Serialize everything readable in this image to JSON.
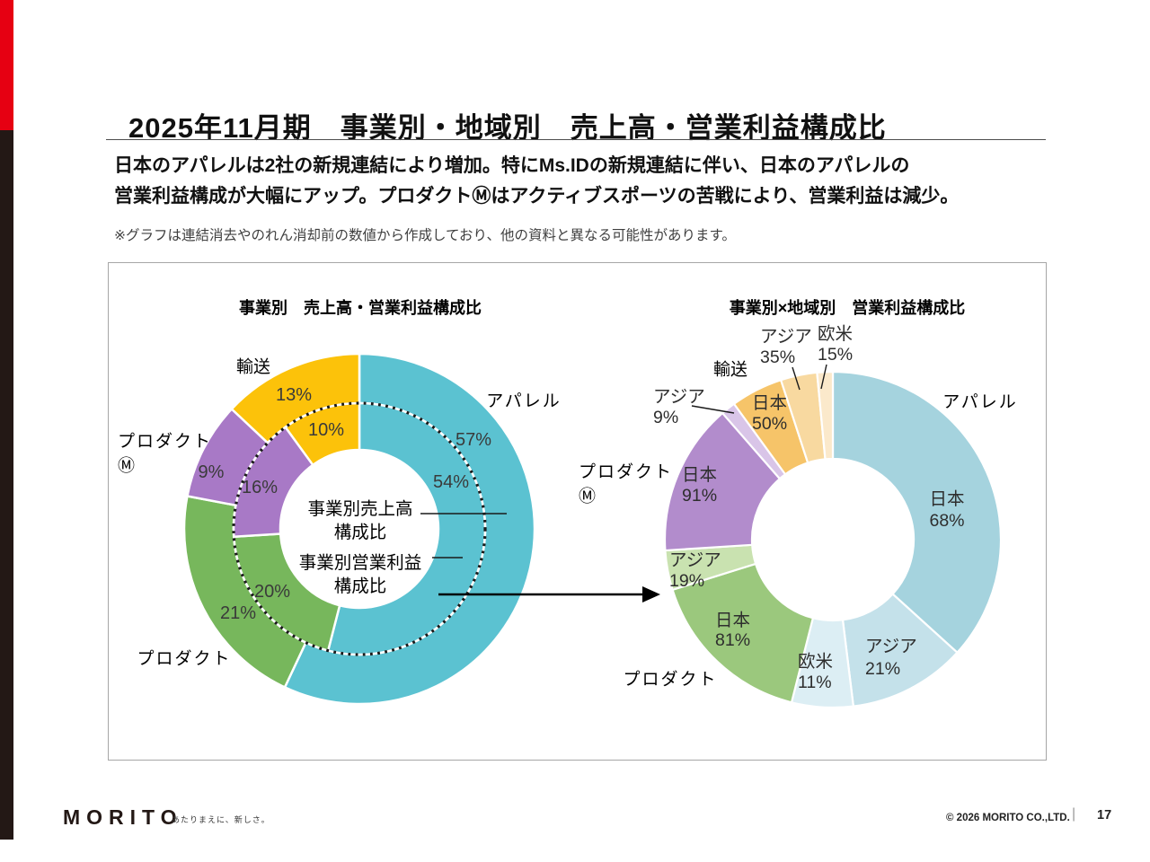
{
  "slide": {
    "title": "2025年11月期　事業別・地域別　売上高・営業利益構成比",
    "summary_lines": [
      "日本のアパレルは2社の新規連結により増加。特にMs.IDの新規連結に伴い、日本のアパレルの",
      "営業利益構成が大幅にアップ。プロダクトⓂはアクティブスポーツの苦戦により、営業利益は減少。"
    ],
    "note": "※グラフは連結消去やのれん消却前の数値から作成しており、他の資料と異なる可能性があります。"
  },
  "chart_data": [
    {
      "type": "donut",
      "subtype": "double-ring",
      "title": "事業別　売上高・営業利益構成比",
      "categories": [
        "アパレル",
        "プロダクト",
        "プロダクトⓂ",
        "輸送"
      ],
      "category_label_lines": [
        [
          "アパレル"
        ],
        [
          "プロダクト"
        ],
        [
          "プロダクト",
          "Ⓜ"
        ],
        [
          "輸送"
        ]
      ],
      "colors": {
        "アパレル": "#5bc2d1",
        "プロダクト": "#77b75c",
        "プロダクトⓂ": "#a879c6",
        "輸送": "#fcc20a"
      },
      "rings": [
        {
          "name": "事業別売上高構成比",
          "name_lines": [
            "事業別売上高",
            "構成比"
          ],
          "position": "outer",
          "values": [
            57,
            21,
            9,
            13
          ]
        },
        {
          "name": "事業別営業利益構成比",
          "name_lines": [
            "事業別営業利益",
            "構成比"
          ],
          "position": "inner",
          "values": [
            54,
            20,
            16,
            10
          ]
        }
      ],
      "legend_position": "none",
      "grid": false
    },
    {
      "type": "donut",
      "subtype": "single-ring",
      "title": "事業別×地域別　営業利益構成比",
      "segments": [
        {
          "business": "アパレル",
          "region": "日本",
          "pct_of_business": 68,
          "pct_of_total": 36.7,
          "color": "#a5d3de"
        },
        {
          "business": "アパレル",
          "region": "アジア",
          "pct_of_business": 21,
          "pct_of_total": 11.3,
          "color": "#c4e1ea"
        },
        {
          "business": "アパレル",
          "region": "欧米",
          "pct_of_business": 11,
          "pct_of_total": 5.9,
          "color": "#dceef4"
        },
        {
          "business": "プロダクト",
          "region": "日本",
          "pct_of_business": 81,
          "pct_of_total": 16.2,
          "color": "#9bc87d"
        },
        {
          "business": "プロダクト",
          "region": "アジア",
          "pct_of_business": 19,
          "pct_of_total": 3.8,
          "color": "#c9e2b0"
        },
        {
          "business": "プロダクトⓂ",
          "region": "日本",
          "pct_of_business": 91,
          "pct_of_total": 14.6,
          "color": "#b28ccc"
        },
        {
          "business": "プロダクトⓂ",
          "region": "アジア",
          "pct_of_business": 9,
          "pct_of_total": 1.4,
          "color": "#d9c5e8"
        },
        {
          "business": "輸送",
          "region": "日本",
          "pct_of_business": 50,
          "pct_of_total": 5.0,
          "color": "#f6c469"
        },
        {
          "business": "輸送",
          "region": "アジア",
          "pct_of_business": 35,
          "pct_of_total": 3.5,
          "color": "#f8d9a0"
        },
        {
          "business": "輸送",
          "region": "欧米",
          "pct_of_business": 15,
          "pct_of_total": 1.5,
          "color": "#fbe9cb"
        }
      ],
      "business_label_lines": [
        [
          "アパレル"
        ],
        [
          "プロダクト"
        ],
        [
          "プロダクト",
          "Ⓜ"
        ],
        [
          "輸送"
        ]
      ],
      "legend_position": "none",
      "grid": false
    }
  ],
  "footer": {
    "logo": "MORITO",
    "tagline": "あたりまえに、新しさ。",
    "copyright": "© 2026 MORITO CO.,LTD.",
    "separator": "|",
    "page_number": "17"
  }
}
